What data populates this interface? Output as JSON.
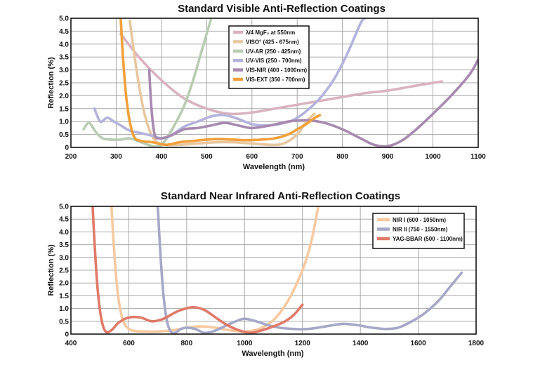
{
  "chart_data": [
    {
      "type": "line",
      "title": "Standard Visible Anti-Reflection Coatings",
      "xlabel": "Wavelength (nm)",
      "ylabel": "Reflection (%)",
      "xlim": [
        200,
        1100
      ],
      "ylim": [
        0,
        5.0
      ],
      "x_ticks": [
        "200",
        "300",
        "400",
        "500",
        "600",
        "700",
        "800",
        "900",
        "1000",
        "1100"
      ],
      "y_ticks": [
        "0",
        "0.5",
        "1.0",
        "1.5",
        "2.0",
        "2.5",
        "3.0",
        "3.5",
        "4.0",
        "4.5",
        "5.0"
      ],
      "grid": true,
      "legend_position": "top-center",
      "series": [
        {
          "name": "λ/4 MgF₂ at 550nm",
          "color": "#d9b3c0",
          "points": [
            [
              310,
              4.4
            ],
            [
              350,
              3.5
            ],
            [
              400,
              2.6
            ],
            [
              450,
              1.9
            ],
            [
              500,
              1.5
            ],
            [
              550,
              1.3
            ],
            [
              600,
              1.35
            ],
            [
              650,
              1.5
            ],
            [
              700,
              1.65
            ],
            [
              750,
              1.8
            ],
            [
              800,
              1.95
            ],
            [
              850,
              2.1
            ],
            [
              900,
              2.2
            ],
            [
              950,
              2.35
            ],
            [
              1000,
              2.5
            ],
            [
              1020,
              2.55
            ]
          ]
        },
        {
          "name": "VISO° (425 - 675nm)",
          "color": "#e8c7a0",
          "points": [
            [
              330,
              4.9
            ],
            [
              345,
              3.0
            ],
            [
              360,
              1.5
            ],
            [
              375,
              0.6
            ],
            [
              390,
              0.2
            ],
            [
              410,
              0.1
            ],
            [
              440,
              0.1
            ],
            [
              480,
              0.15
            ],
            [
              520,
              0.2
            ],
            [
              560,
              0.2
            ],
            [
              600,
              0.15
            ],
            [
              640,
              0.1
            ],
            [
              670,
              0.15
            ],
            [
              700,
              0.5
            ],
            [
              720,
              1.0
            ],
            [
              738,
              1.3
            ]
          ]
        },
        {
          "name": "UV-AR (250 - 425nm)",
          "color": "#b8ccb2",
          "points": [
            [
              228,
              0.7
            ],
            [
              240,
              0.95
            ],
            [
              255,
              0.6
            ],
            [
              270,
              0.35
            ],
            [
              290,
              0.3
            ],
            [
              310,
              0.3
            ],
            [
              330,
              0.35
            ],
            [
              355,
              0.2
            ],
            [
              380,
              0.05
            ],
            [
              395,
              0.05
            ],
            [
              410,
              0.3
            ],
            [
              430,
              0.9
            ],
            [
              450,
              1.6
            ],
            [
              470,
              2.6
            ],
            [
              490,
              3.8
            ],
            [
              510,
              5.0
            ]
          ]
        },
        {
          "name": "UV-VIS (250 - 700nm)",
          "color": "#b3b3dc",
          "points": [
            [
              252,
              1.5
            ],
            [
              265,
              1.0
            ],
            [
              280,
              1.15
            ],
            [
              295,
              1.0
            ],
            [
              310,
              0.85
            ],
            [
              330,
              0.65
            ],
            [
              355,
              0.55
            ],
            [
              380,
              0.45
            ],
            [
              400,
              0.35
            ],
            [
              420,
              0.45
            ],
            [
              450,
              0.8
            ],
            [
              480,
              1.0
            ],
            [
              510,
              1.2
            ],
            [
              540,
              1.25
            ],
            [
              570,
              1.1
            ],
            [
              600,
              0.9
            ],
            [
              630,
              0.85
            ],
            [
              660,
              0.9
            ],
            [
              690,
              1.05
            ],
            [
              720,
              1.4
            ],
            [
              750,
              1.9
            ],
            [
              780,
              2.6
            ],
            [
              810,
              3.6
            ],
            [
              840,
              4.8
            ],
            [
              850,
              5.0
            ]
          ]
        },
        {
          "name": "VIS-NIR (400 - 1000nm)",
          "color": "#a88ab0",
          "points": [
            [
              373,
              3.0
            ],
            [
              378,
              1.5
            ],
            [
              385,
              0.5
            ],
            [
              395,
              0.35
            ],
            [
              420,
              0.45
            ],
            [
              450,
              0.7
            ],
            [
              480,
              0.75
            ],
            [
              510,
              0.85
            ],
            [
              540,
              0.95
            ],
            [
              570,
              0.85
            ],
            [
              600,
              0.75
            ],
            [
              640,
              0.85
            ],
            [
              680,
              1.0
            ],
            [
              720,
              1.05
            ],
            [
              760,
              0.95
            ],
            [
              800,
              0.7
            ],
            [
              840,
              0.35
            ],
            [
              870,
              0.1
            ],
            [
              900,
              0.05
            ],
            [
              930,
              0.25
            ],
            [
              960,
              0.65
            ],
            [
              1000,
              1.3
            ],
            [
              1040,
              2.0
            ],
            [
              1080,
              2.8
            ],
            [
              1100,
              3.4
            ]
          ]
        },
        {
          "name": "VIS-EXT (350 - 700nm)",
          "color": "#f2a03c",
          "points": [
            [
              310,
              5.0
            ],
            [
              315,
              3.5
            ],
            [
              322,
              2.0
            ],
            [
              330,
              1.0
            ],
            [
              340,
              0.4
            ],
            [
              355,
              0.25
            ],
            [
              380,
              0.2
            ],
            [
              410,
              0.1
            ],
            [
              440,
              0.2
            ],
            [
              470,
              0.25
            ],
            [
              500,
              0.3
            ],
            [
              530,
              0.32
            ],
            [
              560,
              0.3
            ],
            [
              590,
              0.28
            ],
            [
              620,
              0.3
            ],
            [
              650,
              0.35
            ],
            [
              680,
              0.5
            ],
            [
              700,
              0.7
            ],
            [
              720,
              0.9
            ],
            [
              735,
              1.1
            ],
            [
              750,
              1.25
            ]
          ]
        }
      ]
    },
    {
      "type": "line",
      "title": "Standard Near Infrared Anti-Reflection Coatings",
      "xlabel": "Wavelength (nm)",
      "ylabel": "Reflection (%)",
      "xlim": [
        400,
        1800
      ],
      "ylim": [
        0,
        5.0
      ],
      "x_ticks": [
        "400",
        "600",
        "800",
        "1000",
        "1200",
        "1400",
        "1600",
        "1800"
      ],
      "y_ticks": [
        "0",
        "0.5",
        "1.0",
        "1.5",
        "2.0",
        "2.5",
        "3.0",
        "3.5",
        "4.0",
        "4.5",
        "5.0"
      ],
      "grid": true,
      "legend_position": "top-right",
      "series": [
        {
          "name": "NIR I (600 - 1050nm)",
          "color": "#f7c9a0",
          "points": [
            [
              540,
              5.0
            ],
            [
              548,
              3.5
            ],
            [
              558,
              2.0
            ],
            [
              570,
              1.0
            ],
            [
              585,
              0.4
            ],
            [
              610,
              0.15
            ],
            [
              650,
              0.1
            ],
            [
              700,
              0.1
            ],
            [
              750,
              0.15
            ],
            [
              800,
              0.25
            ],
            [
              850,
              0.3
            ],
            [
              900,
              0.25
            ],
            [
              950,
              0.15
            ],
            [
              1000,
              0.1
            ],
            [
              1050,
              0.2
            ],
            [
              1100,
              0.55
            ],
            [
              1150,
              1.3
            ],
            [
              1200,
              2.5
            ],
            [
              1230,
              3.6
            ],
            [
              1255,
              5.0
            ]
          ]
        },
        {
          "name": "NIR II (750 - 1550nm)",
          "color": "#a6a8c8",
          "points": [
            [
              700,
              5.0
            ],
            [
              710,
              3.0
            ],
            [
              720,
              1.5
            ],
            [
              732,
              0.5
            ],
            [
              745,
              0.1
            ],
            [
              760,
              0.05
            ],
            [
              780,
              0.2
            ],
            [
              800,
              0.25
            ],
            [
              830,
              0.2
            ],
            [
              860,
              0.05
            ],
            [
              890,
              0.1
            ],
            [
              930,
              0.3
            ],
            [
              970,
              0.5
            ],
            [
              1000,
              0.6
            ],
            [
              1040,
              0.5
            ],
            [
              1080,
              0.35
            ],
            [
              1120,
              0.25
            ],
            [
              1170,
              0.2
            ],
            [
              1220,
              0.2
            ],
            [
              1280,
              0.3
            ],
            [
              1340,
              0.4
            ],
            [
              1390,
              0.35
            ],
            [
              1440,
              0.25
            ],
            [
              1490,
              0.2
            ],
            [
              1530,
              0.25
            ],
            [
              1570,
              0.45
            ],
            [
              1620,
              0.8
            ],
            [
              1670,
              1.3
            ],
            [
              1710,
              1.85
            ],
            [
              1750,
              2.4
            ]
          ]
        },
        {
          "name": "YAG-BBAR (500 - 1100nm)",
          "color": "#e07a68",
          "points": [
            [
              475,
              5.0
            ],
            [
              482,
              3.5
            ],
            [
              492,
              1.8
            ],
            [
              505,
              0.6
            ],
            [
              520,
              0.1
            ],
            [
              540,
              0.15
            ],
            [
              565,
              0.45
            ],
            [
              600,
              0.65
            ],
            [
              640,
              0.65
            ],
            [
              680,
              0.5
            ],
            [
              720,
              0.6
            ],
            [
              770,
              0.9
            ],
            [
              820,
              1.05
            ],
            [
              860,
              0.95
            ],
            [
              900,
              0.65
            ],
            [
              940,
              0.35
            ],
            [
              980,
              0.15
            ],
            [
              1020,
              0.05
            ],
            [
              1060,
              0.15
            ],
            [
              1100,
              0.3
            ],
            [
              1140,
              0.5
            ],
            [
              1170,
              0.75
            ],
            [
              1200,
              1.15
            ]
          ]
        }
      ]
    }
  ]
}
